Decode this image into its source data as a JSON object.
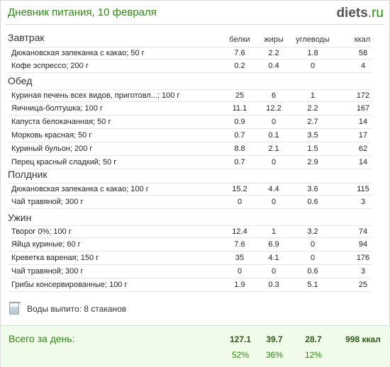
{
  "header": {
    "title": "Дневник питания, 10 февраля",
    "brand_main": "diets",
    "brand_tld": ".ru"
  },
  "columns": {
    "protein": "белки",
    "fat": "жиры",
    "carbs": "углеводы",
    "kcal": "ккал"
  },
  "sections": [
    {
      "title": "Завтрак",
      "rows": [
        {
          "name": "Дюкановская запеканка с какао; 50 г",
          "protein": "7.6",
          "fat": "2.2",
          "carbs": "1.8",
          "kcal": "58"
        },
        {
          "name": "Кофе эспрессо; 200 г",
          "protein": "0.2",
          "fat": "0.4",
          "carbs": "0",
          "kcal": "4"
        }
      ]
    },
    {
      "title": "Обед",
      "rows": [
        {
          "name": "Куриная печень всех видов, приготовл...; 100 г",
          "protein": "25",
          "fat": "6",
          "carbs": "1",
          "kcal": "172"
        },
        {
          "name": "Яичница-болтушка; 100 г",
          "protein": "11.1",
          "fat": "12.2",
          "carbs": "2.2",
          "kcal": "167"
        },
        {
          "name": "Капуста белокачанная; 50 г",
          "protein": "0.9",
          "fat": "0",
          "carbs": "2.7",
          "kcal": "14"
        },
        {
          "name": "Морковь красная; 50 г",
          "protein": "0.7",
          "fat": "0.1",
          "carbs": "3.5",
          "kcal": "17"
        },
        {
          "name": "Куриный бульон; 200 г",
          "protein": "8.8",
          "fat": "2.1",
          "carbs": "1.5",
          "kcal": "62"
        },
        {
          "name": "Перец красный сладкий; 50 г",
          "protein": "0.7",
          "fat": "0",
          "carbs": "2.9",
          "kcal": "14"
        }
      ]
    },
    {
      "title": "Полдник",
      "rows": [
        {
          "name": "Дюкановская запеканка с какао; 100 г",
          "protein": "15.2",
          "fat": "4.4",
          "carbs": "3.6",
          "kcal": "115"
        },
        {
          "name": "Чай травяной; 300 г",
          "protein": "0",
          "fat": "0",
          "carbs": "0.6",
          "kcal": "3"
        }
      ]
    },
    {
      "title": "Ужин",
      "rows": [
        {
          "name": "Творог 0%; 100 г",
          "protein": "12.4",
          "fat": "1",
          "carbs": "3.2",
          "kcal": "74"
        },
        {
          "name": "Яйца куриные; 60 г",
          "protein": "7.6",
          "fat": "6.9",
          "carbs": "0",
          "kcal": "94"
        },
        {
          "name": "Креветка вареная; 150 г",
          "protein": "35",
          "fat": "4.1",
          "carbs": "0",
          "kcal": "176"
        },
        {
          "name": "Чай травяной; 300 г",
          "protein": "0",
          "fat": "0",
          "carbs": "0.6",
          "kcal": "3"
        },
        {
          "name": "Грибы консервированные; 100 г",
          "protein": "1.9",
          "fat": "0.3",
          "carbs": "5.1",
          "kcal": "25"
        }
      ]
    }
  ],
  "water": {
    "icon": "glass-icon",
    "text": "Воды выпито: 8 стаканов"
  },
  "total": {
    "label": "Всего за день:",
    "protein": "127.1",
    "fat": "39.7",
    "carbs": "28.7",
    "kcal": "998 ккал",
    "protein_pct": "52%",
    "fat_pct": "36%",
    "carbs_pct": "12%"
  },
  "colors": {
    "accent": "#2d8a11",
    "total_bg": "#f0fbe9"
  }
}
